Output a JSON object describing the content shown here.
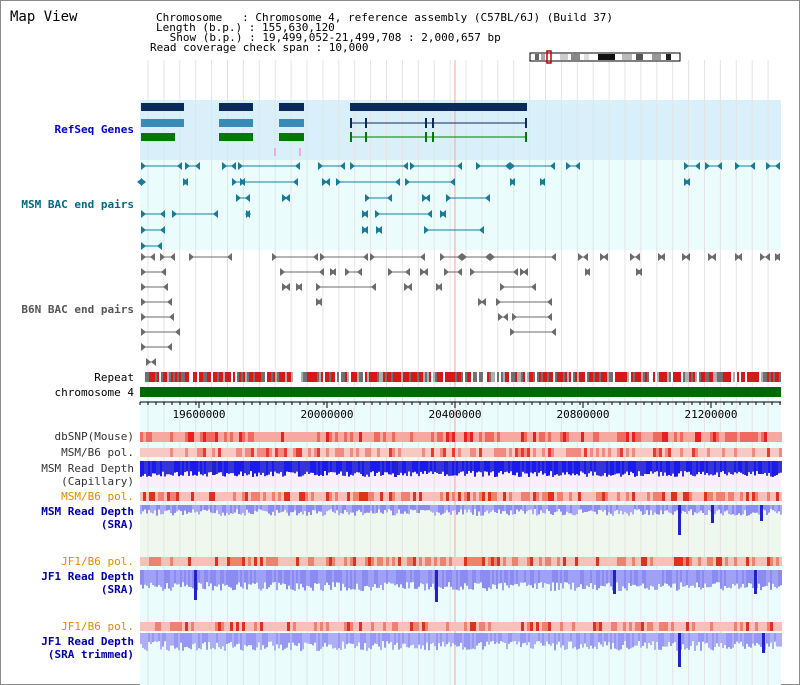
{
  "title": "Map View",
  "header": {
    "chromosome": "Chromosome   : Chromosome 4, reference assembly (C57BL/6J) (Build 37)",
    "length": "Length (b.p.) : 155,630,120",
    "show": " Show (b.p.) : 19,499,052-21,499,708 : 2,000,657 bp",
    "coverage": "Read coverage check span : 10,000"
  },
  "tracks": {
    "refseq": "RefSeq Genes",
    "msm_bac": "MSM BAC end pairs",
    "b6n_bac": "B6N BAC end pairs",
    "repeat": "Repeat",
    "chromosome": "chromosome 4",
    "dbsnp": "dbSNP(Mouse)",
    "msm_b6_pol_1": "MSM/B6 pol.",
    "msm_read_depth_cap_1": "MSM Read Depth",
    "msm_read_depth_cap_2": "(Capillary)",
    "msm_b6_pol_2": "MSM/B6 pol.",
    "msm_read_depth_sra_1": "MSM Read Depth",
    "msm_read_depth_sra_2": "(SRA)",
    "jf1_b6_pol_1": "JF1/B6 pol.",
    "jf1_read_depth_sra_1": "JF1 Read Depth",
    "jf1_read_depth_sra_2": "(SRA)",
    "jf1_b6_pol_2": "JF1/B6 pol.",
    "jf1_read_depth_trim_1": "JF1 Read Depth",
    "jf1_read_depth_trim_2": "(SRA trimmed)"
  },
  "axis": {
    "ticks": [
      "19600000",
      "20000000",
      "20400000",
      "20800000",
      "21200000"
    ]
  },
  "colors": {
    "refseq_label": "#0000cc",
    "msm_label": "#006a80",
    "b6n_label": "#555555",
    "orange_label": "#e08a00",
    "blue_label": "#0000aa",
    "gene_dark": "#0a2a5c",
    "gene_mid": "#3a8ab8",
    "gene_green": "#007a00",
    "bac_teal": "#1a7a9a",
    "chromosome_bar": "#006a00",
    "highlight_line": "#ff9fb0"
  }
}
